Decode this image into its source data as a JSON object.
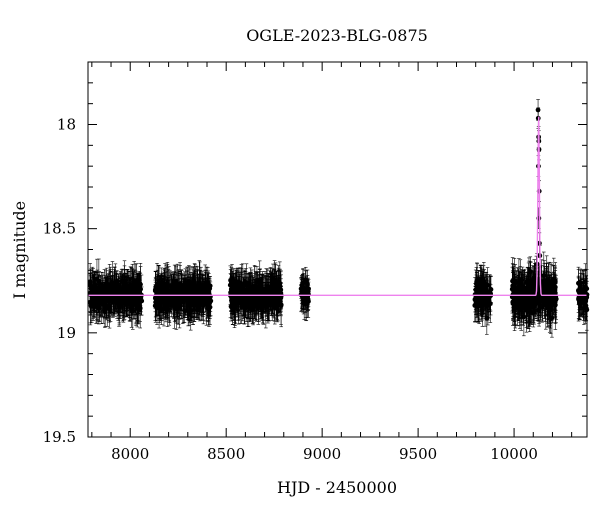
{
  "chart_data": {
    "type": "scatter",
    "title": "OGLE-2023-BLG-0875",
    "xlabel": "HJD - 2450000",
    "ylabel": "I magnitude",
    "xlim": [
      7780,
      10380
    ],
    "ylim": [
      19.5,
      17.7
    ],
    "y_inverted": true,
    "x_ticks": [
      8000,
      8500,
      9000,
      9500,
      10000
    ],
    "x_tick_labels": [
      "8000",
      "8500",
      "9000",
      "9500",
      "10000"
    ],
    "y_ticks": [
      18,
      18.5,
      19,
      19.5
    ],
    "y_tick_labels": [
      "18",
      "18.5",
      "19",
      "19.5"
    ],
    "grid": false,
    "colors": {
      "points": "#000000",
      "model": "#ee82ee",
      "frame": "#000000"
    },
    "series": [
      {
        "kind": "observations",
        "baseline_mag": 18.82,
        "seasons": [
          {
            "x_range": [
              7790,
              8060
            ],
            "mag_scatter": 0.1,
            "error": 0.08
          },
          {
            "x_range": [
              8130,
              8420
            ],
            "mag_scatter": 0.1,
            "error": 0.08
          },
          {
            "x_range": [
              8520,
              8790
            ],
            "mag_scatter": 0.1,
            "error": 0.08
          },
          {
            "x_range": [
              8890,
              8930
            ],
            "mag_scatter": 0.08,
            "error": 0.07
          },
          {
            "x_range": [
              9795,
              9880
            ],
            "mag_scatter": 0.12,
            "error": 0.08
          },
          {
            "x_range": [
              9990,
              10220
            ],
            "mag_scatter": 0.12,
            "error": 0.09
          },
          {
            "x_range": [
              10335,
              10380
            ],
            "mag_scatter": 0.1,
            "error": 0.08
          }
        ],
        "event_points": [
          {
            "x": 10125,
            "y": 17.93
          },
          {
            "x": 10126,
            "y": 17.97
          },
          {
            "x": 10128,
            "y": 18.06
          },
          {
            "x": 10129,
            "y": 18.08
          },
          {
            "x": 10130,
            "y": 18.12
          },
          {
            "x": 10127,
            "y": 18.2
          },
          {
            "x": 10131,
            "y": 18.32
          },
          {
            "x": 10129,
            "y": 18.45
          },
          {
            "x": 10132,
            "y": 18.57
          },
          {
            "x": 10134,
            "y": 18.63
          },
          {
            "x": 10120,
            "y": 18.67
          }
        ]
      },
      {
        "kind": "model",
        "baseline_mag": 18.82,
        "peak_x": 10128,
        "peak_mag": 17.95,
        "peak_width": 4
      }
    ]
  }
}
